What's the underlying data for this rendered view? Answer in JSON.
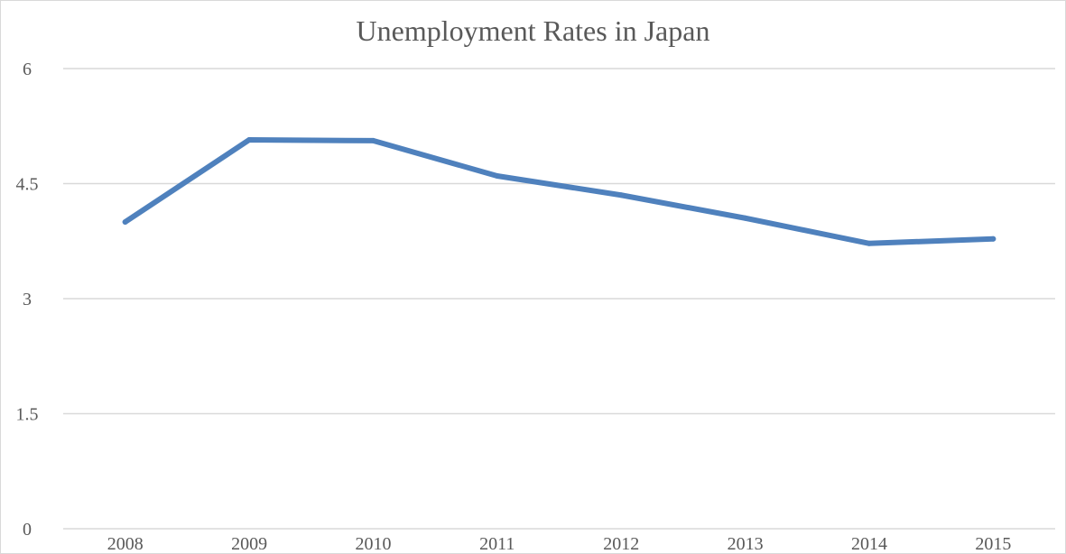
{
  "chart_data": {
    "type": "line",
    "title": "Unemployment Rates in Japan",
    "xlabel": "",
    "ylabel": "",
    "categories": [
      "2008",
      "2009",
      "2010",
      "2011",
      "2012",
      "2013",
      "2014",
      "2015"
    ],
    "series": [
      {
        "values": [
          4.0,
          5.07,
          5.06,
          4.6,
          4.35,
          4.05,
          3.72,
          3.78
        ],
        "color": "#4f81bd"
      }
    ],
    "ylim": [
      0,
      6
    ],
    "yticks": [
      0,
      1.5,
      3,
      4.5,
      6
    ],
    "ytick_labels": [
      "0",
      "1.5",
      "3",
      "4.5",
      "6"
    ],
    "grid": true,
    "legend": "none",
    "colors": {
      "gridline": "#d9d9d9",
      "axis_text": "#595959"
    }
  }
}
